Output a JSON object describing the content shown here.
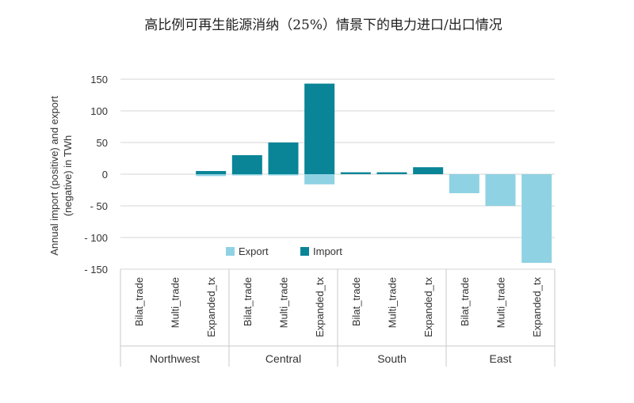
{
  "chart_data": {
    "type": "bar",
    "title": "高比例可再生能源消纳（25%）情景下的电力进口/出口情况",
    "ylabel_line1": "Annual import (positive) and export",
    "ylabel_line2": "(negative) in TWh",
    "ylim": [
      -150,
      150
    ],
    "yticks": [
      "150",
      "100",
      "50",
      "0",
      "- 50",
      "- 100",
      "- 150"
    ],
    "ytick_values": [
      150,
      100,
      50,
      0,
      -50,
      -100,
      -150
    ],
    "grid": true,
    "legend_position": "bottom-center",
    "groups": [
      "Northwest",
      "Central",
      "South",
      "East"
    ],
    "categories": [
      "Bilat_trade",
      "Multi_trade",
      "Expanded_tx",
      "Bilat_trade",
      "Multi_trade",
      "Expanded_tx",
      "Bilat_trade",
      "Multi_trade",
      "Expanded_tx",
      "Bilat_trade",
      "Multi_trade",
      "Expanded_tx"
    ],
    "series": [
      {
        "name": "Export",
        "color": "#8fd2e3",
        "values": [
          0,
          0,
          -3,
          -2,
          -2,
          -16,
          0,
          0,
          0,
          -30,
          -50,
          -140
        ]
      },
      {
        "name": "Import",
        "color": "#0a8497",
        "values": [
          0,
          0,
          5,
          30,
          50,
          143,
          3,
          3,
          11,
          0,
          0,
          0
        ]
      }
    ]
  }
}
